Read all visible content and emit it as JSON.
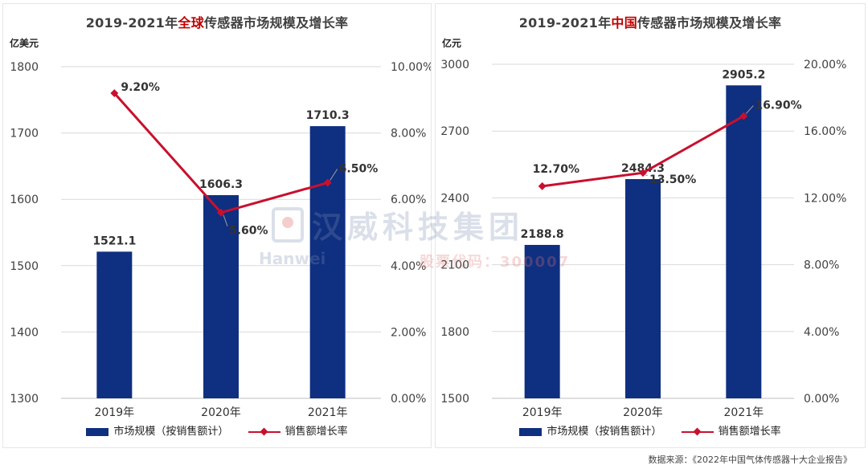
{
  "colors": {
    "bar": "#0f2f80",
    "line": "#c8102e",
    "highlight": "#c00000"
  },
  "left": {
    "title_prefix": "2019-2021年",
    "title_highlight": "全球",
    "title_suffix": "传感器市场规模及增长率",
    "left_unit": "亿美元",
    "legend_bar": "市场规模（按销售额计）",
    "legend_line": "销售额增长率"
  },
  "right": {
    "title_prefix": "2019-2021年",
    "title_highlight": "中国",
    "title_suffix": "传感器市场规模及增长率",
    "left_unit": "亿元",
    "legend_bar": "市场规模（按销售额计）",
    "legend_line": "销售额增长率"
  },
  "watermark": {
    "cn": "汉威科技集团",
    "en": "Hanwei",
    "code": "股票代码：300007"
  },
  "source": "数据来源：《2022年中国气体传感器十大企业报告》",
  "chart_data": [
    {
      "type": "bar",
      "title": "2019-2021年全球传感器市场规模及增长率",
      "categories": [
        "2019年",
        "2020年",
        "2021年"
      ],
      "series": [
        {
          "name": "市场规模（按销售额计）",
          "type": "bar",
          "axis": "left",
          "values": [
            1521.1,
            1606.3,
            1710.3
          ],
          "labels": [
            "1521.1",
            "1606.3",
            "1710.3"
          ]
        },
        {
          "name": "销售额增长率",
          "type": "line",
          "axis": "right",
          "values": [
            9.2,
            5.6,
            6.5
          ],
          "labels": [
            "9.20%",
            "5.60%",
            "6.50%"
          ]
        }
      ],
      "left_axis": {
        "label": "亿美元",
        "min": 1300,
        "max": 1800,
        "ticks": [
          "1300",
          "1400",
          "1500",
          "1600",
          "1700",
          "1800"
        ]
      },
      "right_axis": {
        "min": 0,
        "max": 10,
        "ticks": [
          "0.00%",
          "2.00%",
          "4.00%",
          "6.00%",
          "8.00%",
          "10.00%"
        ]
      },
      "grid": true,
      "legend": "bottom"
    },
    {
      "type": "bar",
      "title": "2019-2021年中国传感器市场规模及增长率",
      "categories": [
        "2019年",
        "2020年",
        "2021年"
      ],
      "series": [
        {
          "name": "市场规模（按销售额计）",
          "type": "bar",
          "axis": "left",
          "values": [
            2188.8,
            2484.3,
            2905.2
          ],
          "labels": [
            "2188.8",
            "2484.3",
            "2905.2"
          ]
        },
        {
          "name": "销售额增长率",
          "type": "line",
          "axis": "right",
          "values": [
            12.7,
            13.5,
            16.9
          ],
          "labels": [
            "12.70%",
            "13.50%",
            "16.90%"
          ]
        }
      ],
      "left_axis": {
        "label": "亿元",
        "min": 1500,
        "max": 3000,
        "ticks": [
          "1500",
          "1800",
          "2100",
          "2400",
          "2700",
          "3000"
        ]
      },
      "right_axis": {
        "min": 0,
        "max": 20,
        "ticks": [
          "0.00%",
          "4.00%",
          "8.00%",
          "12.00%",
          "16.00%",
          "20.00%"
        ]
      },
      "grid": true,
      "legend": "bottom"
    }
  ]
}
